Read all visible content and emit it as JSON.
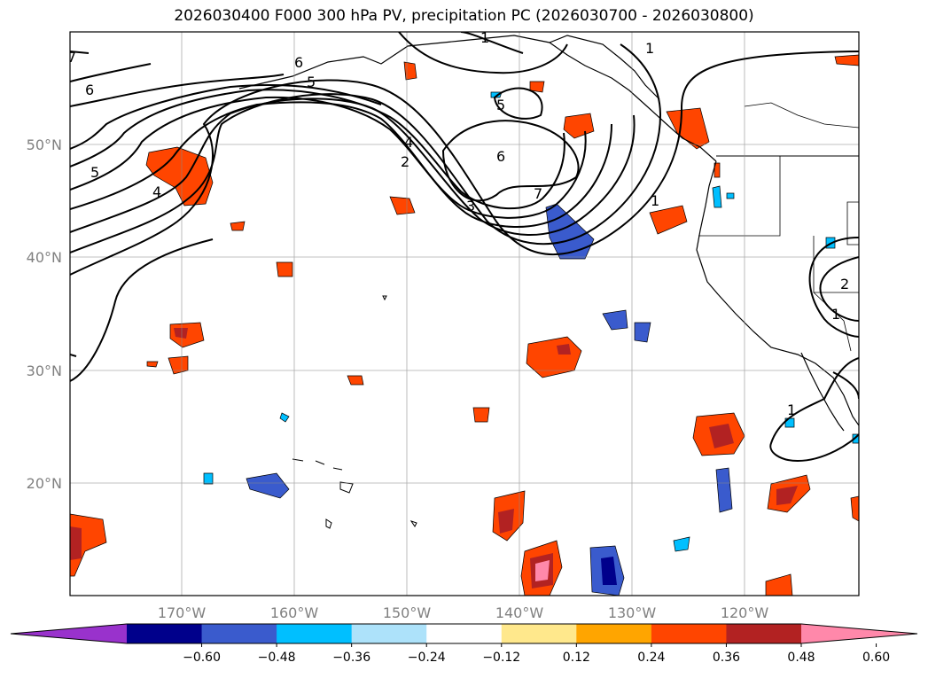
{
  "title": "2026030400 F000 300 hPa PV, precipitation PC (2026030700 - 2026030800)",
  "map": {
    "lon_range": [
      -180,
      -110
    ],
    "lat_range": [
      10,
      60
    ],
    "lat_labels": [
      "50°N",
      "40°N",
      "30°N",
      "20°N"
    ],
    "lat_values": [
      50,
      40,
      30,
      20
    ],
    "lon_labels": [
      "170°W",
      "160°W",
      "150°W",
      "140°W",
      "130°W",
      "120°W"
    ],
    "lon_values": [
      -170,
      -160,
      -150,
      -140,
      -130,
      -120
    ],
    "gridlines": true
  },
  "pv_contour_labels": [
    "7",
    "6",
    "5",
    "1",
    "1",
    "6",
    "5",
    "4",
    "2",
    "5",
    "4",
    "6",
    "7",
    "3",
    "1",
    "2",
    "1",
    "1"
  ],
  "colorbar": {
    "ticks": [
      "−0.60",
      "−0.48",
      "−0.36",
      "−0.24",
      "−0.12",
      "0.12",
      "0.24",
      "0.36",
      "0.48",
      "0.60"
    ],
    "colors": [
      "#9932CC",
      "#00008B",
      "#3A5BCD",
      "#00BFFF",
      "#ADE2FA",
      "#FFFFFF",
      "#FFE88C",
      "#FFA500",
      "#FF4500",
      "#B22222",
      "#FF88AA"
    ],
    "extend": "both"
  }
}
